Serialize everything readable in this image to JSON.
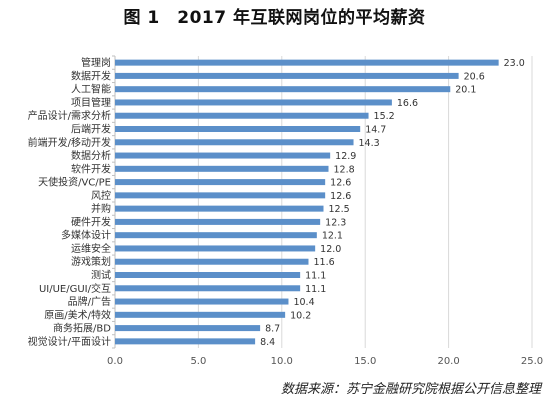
{
  "title": "图 1　2017 年互联网岗位的平均薪资",
  "source": "数据来源：苏宁金融研究院根据公开信息整理",
  "colors": {
    "bar": "#5b8fc9",
    "grid": "#d9d9d9",
    "axis": "#bfbfbf",
    "text": "#333333"
  },
  "chart_data": {
    "type": "bar",
    "orientation": "horizontal",
    "categories": [
      "管理岗",
      "数据开发",
      "人工智能",
      "项目管理",
      "产品设计/需求分析",
      "后端开发",
      "前端开发/移动开发",
      "数据分析",
      "软件开发",
      "天使投资/VC/PE",
      "风控",
      "并购",
      "硬件开发",
      "多媒体设计",
      "运维安全",
      "游戏策划",
      "测试",
      "UI/UE/GUI/交互",
      "品牌/广告",
      "原画/美术/特效",
      "商务拓展/BD",
      "视觉设计/平面设计"
    ],
    "values": [
      23.0,
      20.6,
      20.1,
      16.6,
      15.2,
      14.7,
      14.3,
      12.9,
      12.8,
      12.6,
      12.6,
      12.5,
      12.3,
      12.1,
      12.0,
      11.6,
      11.1,
      11.1,
      10.4,
      10.2,
      8.7,
      8.4
    ],
    "value_labels": [
      "23.0",
      "20.6",
      "20.1",
      "16.6",
      "15.2",
      "14.7",
      "14.3",
      "12.9",
      "12.8",
      "12.6",
      "12.6",
      "12.5",
      "12.3",
      "12.1",
      "12.0",
      "11.6",
      "11.1",
      "11.1",
      "10.4",
      "10.2",
      "8.7",
      "8.4"
    ],
    "xlim": [
      0,
      25
    ],
    "xticks": [
      "0.0",
      "5.0",
      "10.0",
      "15.0",
      "20.0",
      "25.0"
    ],
    "grid": "vertical",
    "legend": "none"
  }
}
